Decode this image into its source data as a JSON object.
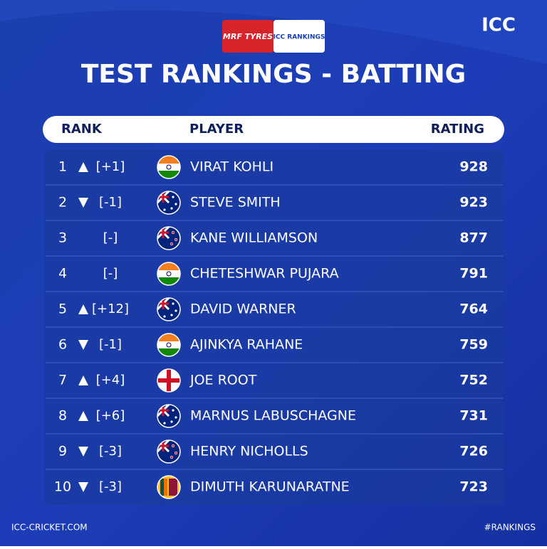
{
  "header": {
    "sponsor": "MRF TYRES",
    "badge": "ICC RANKINGS",
    "logo": "ICC",
    "title": "TEST RANKINGS - BATTING"
  },
  "table": {
    "columns": [
      "RANK",
      "PLAYER",
      "RATING"
    ],
    "rows": [
      {
        "rank": 1,
        "movement": "up",
        "change": "[+1]",
        "flag": "india",
        "player": "VIRAT KOHLI",
        "rating": 928
      },
      {
        "rank": 2,
        "movement": "down",
        "change": "[-1]",
        "flag": "australia",
        "player": "STEVE SMITH",
        "rating": 923
      },
      {
        "rank": 3,
        "movement": "none",
        "change": "[-]",
        "flag": "new-zealand",
        "player": "KANE WILLIAMSON",
        "rating": 877
      },
      {
        "rank": 4,
        "movement": "none",
        "change": "[-]",
        "flag": "india",
        "player": "CHETESHWAR PUJARA",
        "rating": 791
      },
      {
        "rank": 5,
        "movement": "up",
        "change": "[+12]",
        "flag": "australia",
        "player": "DAVID WARNER",
        "rating": 764
      },
      {
        "rank": 6,
        "movement": "down",
        "change": "[-1]",
        "flag": "india",
        "player": "AJINKYA RAHANE",
        "rating": 759
      },
      {
        "rank": 7,
        "movement": "up",
        "change": "[+4]",
        "flag": "england",
        "player": "JOE ROOT",
        "rating": 752
      },
      {
        "rank": 8,
        "movement": "up",
        "change": "[+6]",
        "flag": "australia",
        "player": "MARNUS LABUSCHAGNE",
        "rating": 731
      },
      {
        "rank": 9,
        "movement": "down",
        "change": "[-3]",
        "flag": "new-zealand",
        "player": "HENRY NICHOLLS",
        "rating": 726
      },
      {
        "rank": 10,
        "movement": "down",
        "change": "[-3]",
        "flag": "sri-lanka",
        "player": "DIMUTH KARUNARATNE",
        "rating": 723
      }
    ]
  },
  "footer": {
    "left": "ICC-CRICKET.COM",
    "right": "#RANKINGS"
  }
}
